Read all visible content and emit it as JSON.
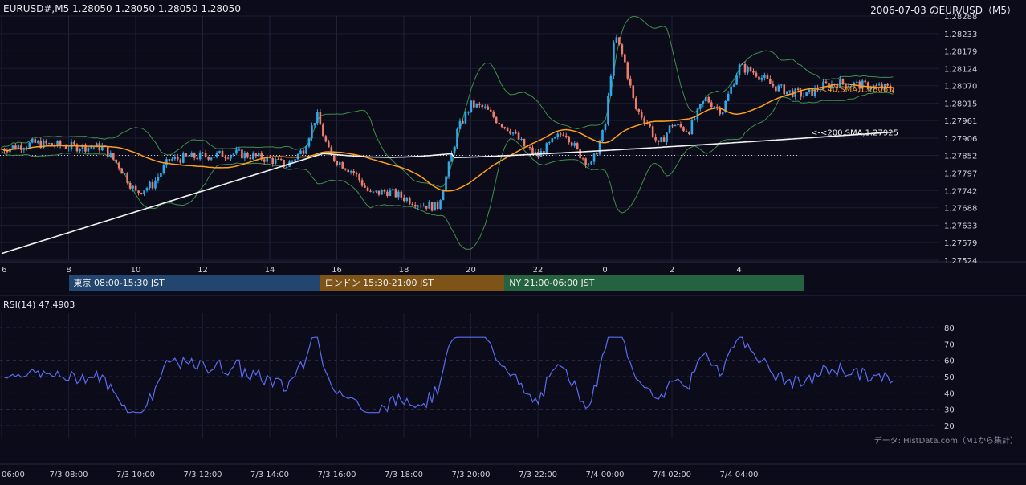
{
  "header": {
    "symbol_info": "EURUSD#,M5 1.28050 1.28050 1.28050 1.28050",
    "title": "2006-07-03 のEUR/USD（M5）"
  },
  "chart_data": {
    "type": "candlestick",
    "timeframe": "M5",
    "price_axis": {
      "ticks": [
        "1.28288",
        "1.28233",
        "1.28179",
        "1.28124",
        "1.28070",
        "1.28015",
        "1.27961",
        "1.27906",
        "1.27852",
        "1.27797",
        "1.27742",
        "1.27688",
        "1.27633",
        "1.27579",
        "1.27524"
      ],
      "ylim": [
        1.27524,
        1.28288
      ]
    },
    "hour_ticks": [
      "6",
      "8",
      "10",
      "12",
      "14",
      "16",
      "18",
      "20",
      "22",
      "0",
      "2",
      "4"
    ],
    "reference_line": 1.27852,
    "series": [
      {
        "name": "40,SMA",
        "label": "<-<40,SMA,1.28061",
        "last": 1.28061,
        "color": "#ff9f1c"
      },
      {
        "name": "200,SMA",
        "label": "<-<200,SMA,1.27925",
        "last": 1.27925,
        "color": "#f2f2f2"
      },
      {
        "name": "bollinger",
        "color": "#3f8f4a"
      }
    ],
    "candle_colors": {
      "up": "#31a8e8",
      "down": "#ec7f6b"
    },
    "sessions": [
      {
        "label": "東京 08:00-15:30 JST",
        "color": "#22466f",
        "start": "08:00",
        "end": "15:30"
      },
      {
        "label": "ロンドン 15:30-21:00 JST",
        "color": "#7e5318",
        "start": "15:30",
        "end": "21:00"
      },
      {
        "label": "NY 21:00-06:00 JST",
        "color": "#256340",
        "start": "21:00",
        "end": "06:00"
      }
    ],
    "rsi": {
      "label": "RSI(14) 47.4903",
      "period": 14,
      "last": 47.4903,
      "ticks": [
        "80",
        "70",
        "60",
        "50",
        "40",
        "30",
        "20"
      ],
      "ylim": [
        20,
        80
      ],
      "color": "#5b6cf0"
    },
    "time_axis": {
      "ticks": [
        "06:00",
        "7/3 08:00",
        "7/3 10:00",
        "7/3 12:00",
        "7/3 14:00",
        "7/3 16:00",
        "7/3 18:00",
        "7/3 20:00",
        "7/3 22:00",
        "7/4 00:00",
        "7/4 02:00",
        "7/4 04:00"
      ]
    },
    "credit": "データ: HistData.com（M1から集計）"
  }
}
